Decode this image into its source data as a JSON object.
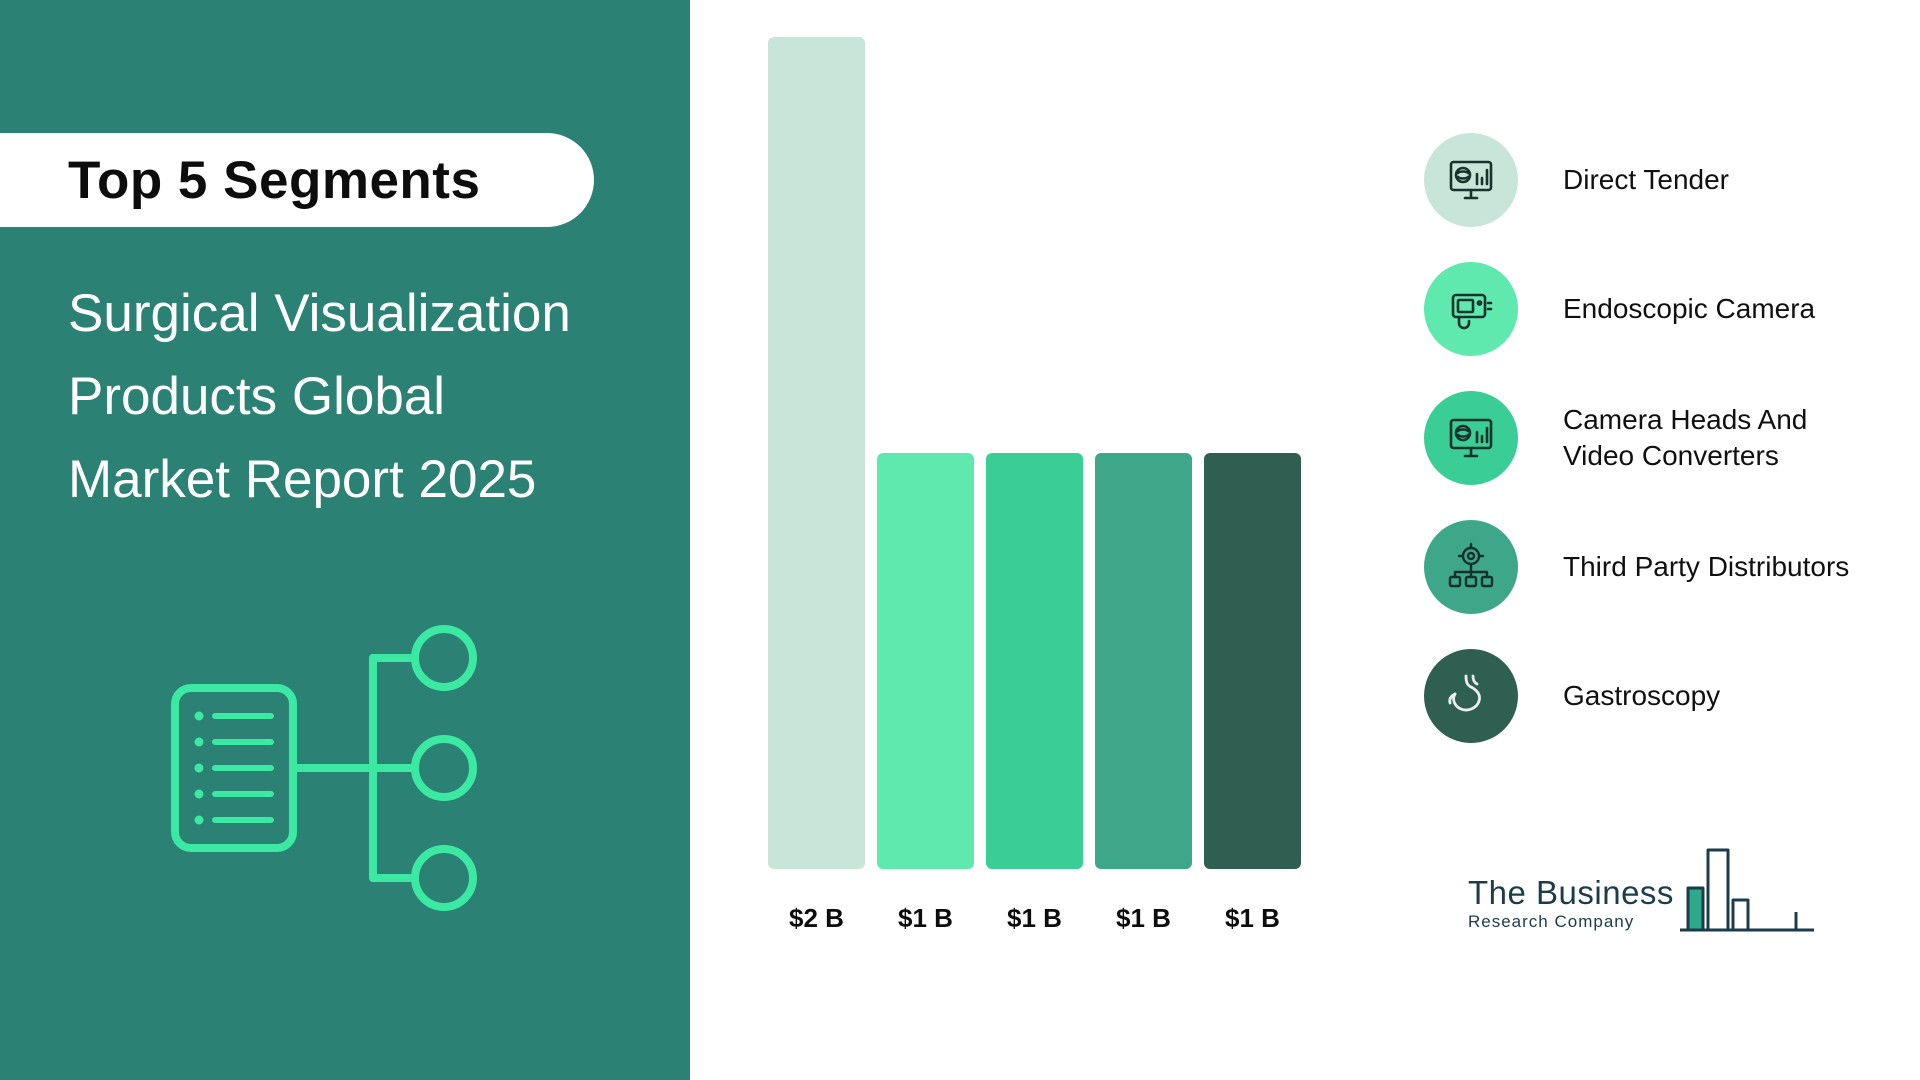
{
  "sidebar": {
    "bg_color": "#2B8173",
    "accent_color": "#3BE9A2",
    "badge_label": "Top 5 Segments",
    "title_lines": [
      "Surgical Visualization",
      "Products Global",
      "Market Report 2025"
    ]
  },
  "chart_data": {
    "type": "bar",
    "categories": [
      "Direct Tender",
      "Endoscopic Camera",
      "Camera Heads And Video Converters",
      "Third Party Distributors",
      "Gastroscopy"
    ],
    "values": [
      2,
      1,
      1,
      1,
      1
    ],
    "value_labels": [
      "$2 B",
      "$1 B",
      "$1 B",
      "$1 B",
      "$1 B"
    ],
    "bar_colors": [
      "#C7E6D9",
      "#5FE9AE",
      "#3ACD96",
      "#3EA78A",
      "#2F5F50"
    ],
    "title": "Surgical Visualization Products Global Market Report 2025 — Top 5 Segments",
    "xlabel": "",
    "ylabel": "",
    "ylim": [
      0,
      2
    ],
    "grid": false,
    "legend_position": "right"
  },
  "legend": {
    "items": [
      {
        "label": "Direct Tender",
        "color": "#C7E6D9",
        "icon": "monitor-analytics-icon"
      },
      {
        "label": "Endoscopic Camera",
        "color": "#5FE9AE",
        "icon": "endoscopic-camera-icon"
      },
      {
        "label": "Camera Heads And\nVideo Converters",
        "color": "#3ACD96",
        "icon": "monitor-analytics-icon"
      },
      {
        "label": "Third Party Distributors",
        "color": "#3EA78A",
        "icon": "distribution-network-icon"
      },
      {
        "label": "Gastroscopy",
        "color": "#2F5F50",
        "icon": "stomach-icon"
      }
    ]
  },
  "logo": {
    "name_line1": "The Business",
    "name_line2": "Research Company"
  }
}
